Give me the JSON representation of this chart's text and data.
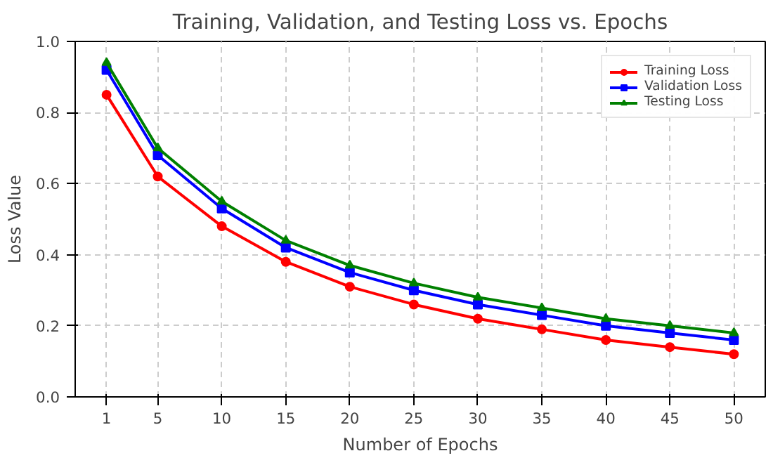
{
  "chart_data": {
    "type": "line",
    "title": "Training, Validation, and Testing Loss vs. Epochs",
    "xlabel": "Number of Epochs",
    "ylabel": "Loss Value",
    "x": [
      1,
      5,
      10,
      15,
      20,
      25,
      30,
      35,
      40,
      45,
      50
    ],
    "series": [
      {
        "name": "Training Loss",
        "color": "#ff0000",
        "marker": "circle",
        "values": [
          0.85,
          0.62,
          0.48,
          0.38,
          0.31,
          0.26,
          0.22,
          0.19,
          0.16,
          0.14,
          0.12
        ]
      },
      {
        "name": "Validation Loss",
        "color": "#0000ff",
        "marker": "square",
        "values": [
          0.92,
          0.68,
          0.53,
          0.42,
          0.35,
          0.3,
          0.26,
          0.23,
          0.2,
          0.18,
          0.16
        ]
      },
      {
        "name": "Testing Loss",
        "color": "#008000",
        "marker": "triangle",
        "values": [
          0.94,
          0.7,
          0.55,
          0.44,
          0.37,
          0.32,
          0.28,
          0.25,
          0.22,
          0.2,
          0.18
        ]
      }
    ],
    "xlim": [
      -1.45,
      52.45
    ],
    "xticks": [
      1,
      5,
      10,
      15,
      20,
      25,
      30,
      35,
      40,
      45,
      50
    ],
    "ylim": [
      0,
      1
    ],
    "yticks": [
      {
        "value": 0,
        "label": "0.0"
      },
      {
        "value": 0.2,
        "label": "0.2"
      },
      {
        "value": 0.4,
        "label": "0.4"
      },
      {
        "value": 0.6,
        "label": "0.6"
      },
      {
        "value": 0.8,
        "label": "0.8"
      },
      {
        "value": 1,
        "label": "1.0"
      }
    ],
    "grid": true,
    "legend": "top right",
    "line_style": "solid"
  }
}
